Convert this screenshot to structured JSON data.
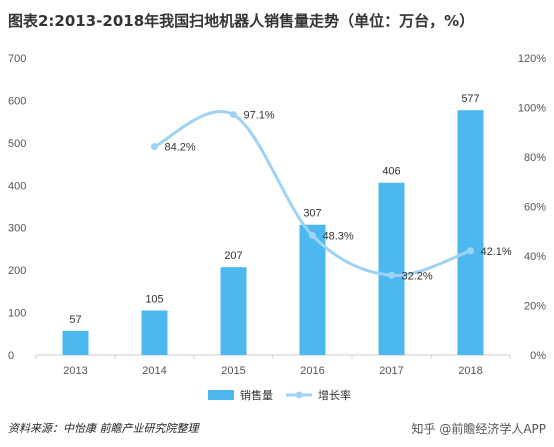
{
  "title": "图表2:2013-2018年我国扫地机器人销售量走势（单位：万台，%）",
  "source": "资料来源：中怡康 前瞻产业研究院整理",
  "credit": "知乎 @前瞻经济学人APP",
  "colors": {
    "bar": "#4db8f0",
    "line": "#9fd3f5",
    "axis": "#cccccc",
    "grid": "#ffffff"
  },
  "chart_data": {
    "type": "bar",
    "categories": [
      "2013",
      "2014",
      "2015",
      "2016",
      "2017",
      "2018"
    ],
    "series": [
      {
        "name": "销售量",
        "type": "bar",
        "axis": "left",
        "values": [
          57,
          105,
          207,
          307,
          406,
          577
        ],
        "labels": [
          "57",
          "105",
          "207",
          "307",
          "406",
          "577"
        ]
      },
      {
        "name": "增长率",
        "type": "line",
        "axis": "right",
        "values": [
          null,
          84.2,
          97.1,
          48.3,
          32.2,
          42.1
        ],
        "labels": [
          "",
          "84.2%",
          "97.1%",
          "48.3%",
          "32.2%",
          "42.1%"
        ]
      }
    ],
    "y_left": {
      "range": [
        0,
        700
      ],
      "ticks": [
        "0",
        "100",
        "200",
        "300",
        "400",
        "500",
        "600",
        "700"
      ]
    },
    "y_right": {
      "range": [
        0,
        120
      ],
      "ticks": [
        "0%",
        "20%",
        "40%",
        "60%",
        "80%",
        "100%",
        "120%"
      ]
    },
    "grid": false,
    "legend": "bottom-center"
  }
}
